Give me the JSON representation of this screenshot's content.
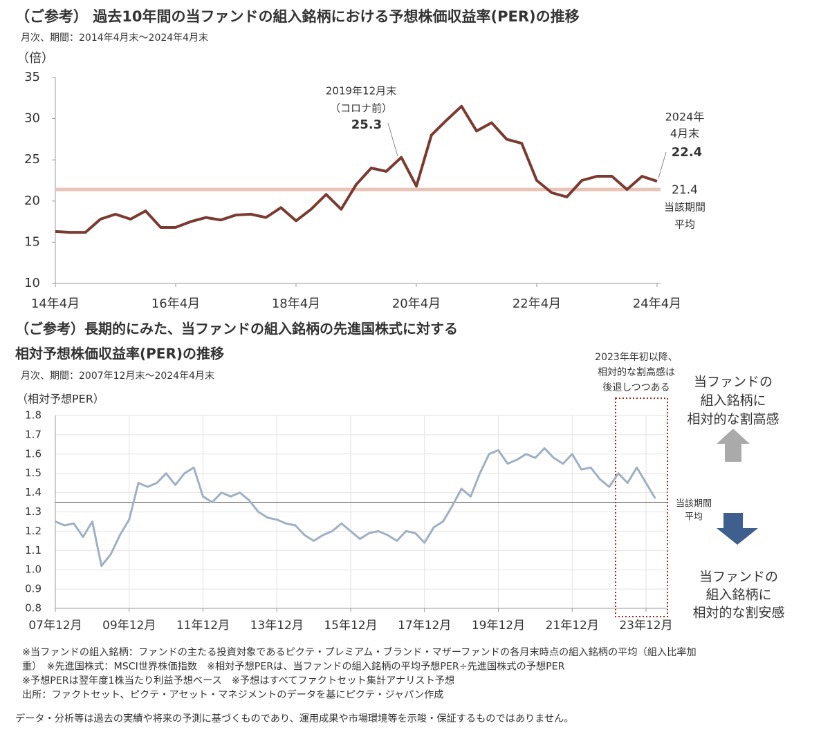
{
  "chart_data": [
    {
      "type": "line",
      "title": "（ご参考） 過去10年間の当ファンドの組入銘柄における予想株価収益率(PER)の推移",
      "subtitle": "月次、期間：2014年4月末～2024年4月末",
      "y_label": "（倍）",
      "categories": [
        "14年4月",
        null,
        null,
        null,
        null,
        null,
        null,
        null,
        "16年4月",
        null,
        null,
        null,
        null,
        null,
        null,
        null,
        "18年4月",
        null,
        null,
        null,
        null,
        null,
        null,
        null,
        "20年4月",
        null,
        null,
        null,
        null,
        null,
        null,
        null,
        "22年4月",
        null,
        null,
        null,
        null,
        null,
        null,
        null,
        "24年4月"
      ],
      "values": [
        16.3,
        16.2,
        16.2,
        17.8,
        18.4,
        17.8,
        18.8,
        16.8,
        16.8,
        17.5,
        18.0,
        17.7,
        18.3,
        18.4,
        18.0,
        19.2,
        17.6,
        19.0,
        20.8,
        19.0,
        22.0,
        24.0,
        23.6,
        25.3,
        21.8,
        28.0,
        29.8,
        31.5,
        28.5,
        29.5,
        27.5,
        27.0,
        22.5,
        21.0,
        20.5,
        22.5,
        23.0,
        23.0,
        21.4,
        23.0,
        22.4
      ],
      "color": "#7b3a30",
      "ylim": [
        10,
        35
      ],
      "yticks": [
        10,
        15,
        20,
        25,
        30,
        35
      ],
      "grid": false,
      "reference_line": {
        "value": 21.4,
        "color": "#e8c4b8",
        "label": [
          "当該期間",
          "平均"
        ]
      },
      "annotations": [
        [
          "2019年12月末",
          "（コロナ前）"
        ],
        [
          "2024年",
          "4月末"
        ]
      ]
    },
    {
      "type": "line",
      "title": [
        "（ご参考）長期的にみた、当ファンドの組入銘柄の先進国株式に対する",
        "相対予想株価収益率(PER)の推移"
      ],
      "subtitle": "月次、期間：2007年12月末～2024年4月末",
      "y_label": "（相対予想PER）",
      "categories": [
        "07年12月",
        null,
        null,
        null,
        null,
        null,
        null,
        null,
        "09年12月",
        null,
        null,
        null,
        null,
        null,
        null,
        null,
        "11年12月",
        null,
        null,
        null,
        null,
        null,
        null,
        null,
        "13年12月",
        null,
        null,
        null,
        null,
        null,
        null,
        null,
        "15年12月",
        null,
        null,
        null,
        null,
        null,
        null,
        null,
        "17年12月",
        null,
        null,
        null,
        null,
        null,
        null,
        null,
        "19年12月",
        null,
        null,
        null,
        null,
        null,
        null,
        null,
        "21年12月",
        null,
        null,
        null,
        null,
        null,
        null,
        null,
        "23年12月",
        null
      ],
      "values": [
        1.25,
        1.23,
        1.24,
        1.17,
        1.25,
        1.02,
        1.08,
        1.18,
        1.26,
        1.45,
        1.43,
        1.45,
        1.5,
        1.44,
        1.5,
        1.53,
        1.38,
        1.35,
        1.4,
        1.38,
        1.4,
        1.36,
        1.3,
        1.27,
        1.26,
        1.24,
        1.23,
        1.18,
        1.15,
        1.18,
        1.2,
        1.24,
        1.2,
        1.16,
        1.19,
        1.2,
        1.18,
        1.15,
        1.2,
        1.19,
        1.14,
        1.22,
        1.25,
        1.33,
        1.42,
        1.38,
        1.5,
        1.6,
        1.62,
        1.55,
        1.57,
        1.6,
        1.58,
        1.63,
        1.58,
        1.55,
        1.6,
        1.52,
        1.53,
        1.47,
        1.43,
        1.5,
        1.45,
        1.53,
        1.45,
        1.37
      ],
      "color": "#9fb0c4",
      "ylim": [
        0.8,
        1.8
      ],
      "yticks": [
        0.8,
        0.9,
        {
          "value": 1,
          "label": "1.0"
        },
        1.1,
        1.2,
        1.3,
        1.4,
        1.5,
        1.6,
        1.7,
        1.8
      ],
      "grid": true,
      "reference_line": {
        "value": 1.35,
        "color": "#555555",
        "label": [
          "当該期間",
          "平均"
        ]
      },
      "annotations": [
        [
          "2023年年初以降、",
          "相対的な割高感は",
          "後退しつつある"
        ],
        [
          "当ファンドの",
          "組入銘柄に",
          "相対的な割高感"
        ],
        [
          "当ファンドの",
          "組入銘柄に",
          "相対的な割安感"
        ]
      ]
    }
  ],
  "notes": [
    "※当ファンドの組入銘柄：ファンドの主たる投資対象であるピクテ・プレミアム・ブランド・マザーファンドの各月末時点の組入銘柄の平均（組入比率加",
    "重）　※先進国株式：MSCI世界株価指数　※相対予想PERは、当ファンドの組入銘柄の平均予想PER÷先進国株式の予想PER",
    "※予想PERは翌年度1株当たり利益予想ベース　※予想はすべてファクトセット集計アナリスト予想",
    "出所：ファクトセット、ピクテ・アセット・マネジメントのデータを基にピクテ・ジャパン作成"
  ],
  "disclaimer": "データ・分析等は過去の実績や将来の予測に基づくものであり、運用成果や市場環境等を示唆・保証するものではありません。"
}
